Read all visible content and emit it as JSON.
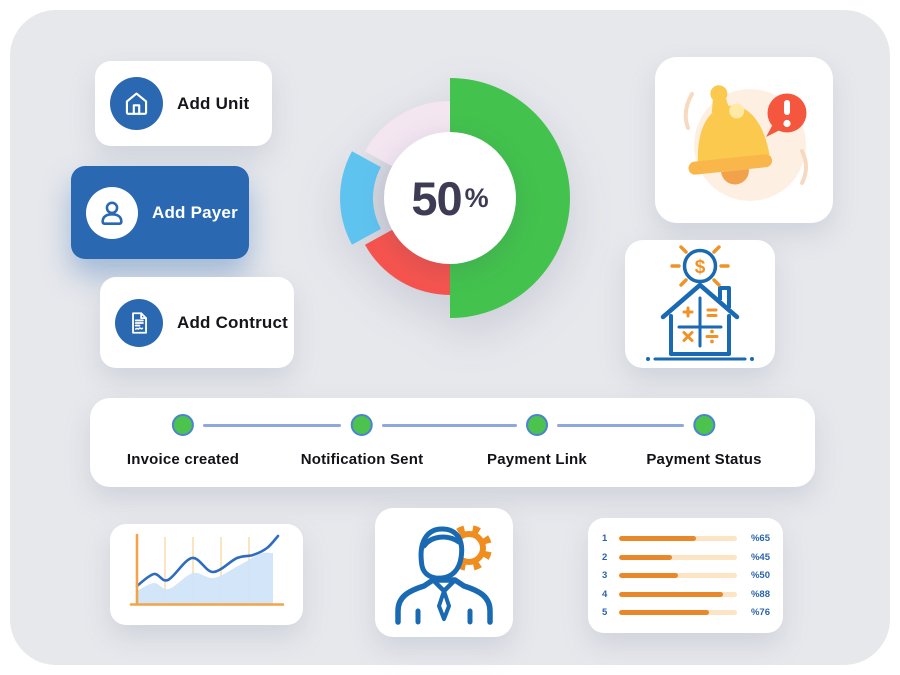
{
  "colors": {
    "canvas": "#e7e8ec",
    "card": "#ffffff",
    "primary_blue": "#2a68b2",
    "icon_blue": "#1a6ab3",
    "accent_orange": "#ef8d1f",
    "text_dark": "#15151c",
    "text_navy": "#3e3c55",
    "label_blue": "#2a64ad",
    "step_dot_green": "#4cc24f",
    "step_dot_border": "#4c82d0",
    "step_line": "#8fa7e0",
    "bar_fill": "#e8882a",
    "bar_track": "#fce4c4"
  },
  "actions": [
    {
      "label": "Add Unit",
      "icon": "home-icon",
      "active": false
    },
    {
      "label": "Add Payer",
      "icon": "user-icon",
      "active": true
    },
    {
      "label": "Add Contruct",
      "icon": "contract-icon",
      "active": false
    }
  ],
  "stepper": {
    "steps": [
      {
        "label": "Invoice created",
        "state": "complete"
      },
      {
        "label": "Notification Sent",
        "state": "complete"
      },
      {
        "label": "Payment Link",
        "state": "complete"
      },
      {
        "label": "Payment Status",
        "state": "complete"
      }
    ]
  },
  "illustrations": {
    "notification_bell": "bell-with-alert-bubble",
    "house_calculator": "house-with-dollar-magnifier-and-math-operators",
    "user_settings": "person-with-gear"
  },
  "chart_data": [
    {
      "type": "pie",
      "variant": "donut",
      "center_label": {
        "value": "50",
        "suffix": "%"
      },
      "start_angle": 0,
      "legend": "none",
      "slices": [
        {
          "name": "completed",
          "value": 50,
          "color": "#43c24d",
          "emphasis": true,
          "exploded": false
        },
        {
          "name": "segment-red",
          "value": 17,
          "color": "#f5544e",
          "emphasis": false,
          "exploded": false
        },
        {
          "name": "segment-sky",
          "value": 16,
          "color": "#5fc3f0",
          "emphasis": false,
          "exploded": true
        },
        {
          "name": "segment-lavender",
          "value": 17,
          "color": "#f3e6f1",
          "emphasis": false,
          "exploded": false
        }
      ]
    },
    {
      "type": "line",
      "title": "",
      "axes_visible": true,
      "grid": "vertical",
      "baseline_y": 80,
      "series": [
        {
          "name": "area-fill",
          "kind": "area",
          "color": "#cfe3f8",
          "points": [
            [
              27,
              67
            ],
            [
              44,
              59
            ],
            [
              59,
              65
            ],
            [
              83,
              49
            ],
            [
              104,
              54
            ],
            [
              128,
              42
            ],
            [
              150,
              30
            ],
            [
              163,
              29
            ]
          ]
        },
        {
          "name": "trend-line",
          "kind": "line",
          "color": "#2e6cc2",
          "points": [
            [
              27,
              62
            ],
            [
              44,
              50
            ],
            [
              58,
              56
            ],
            [
              82,
              34
            ],
            [
              103,
              48
            ],
            [
              127,
              34
            ],
            [
              143,
              31
            ],
            [
              157,
              24
            ],
            [
              168,
              12
            ]
          ]
        }
      ]
    },
    {
      "type": "bar",
      "orientation": "horizontal",
      "bar_color": "#e8882a",
      "track_color": "#fce4c4",
      "rows": [
        {
          "index": "1",
          "percent": 65,
          "label": "%65"
        },
        {
          "index": "2",
          "percent": 45,
          "label": "%45"
        },
        {
          "index": "3",
          "percent": 50,
          "label": "%50"
        },
        {
          "index": "4",
          "percent": 88,
          "label": "%88"
        },
        {
          "index": "5",
          "percent": 76,
          "label": "%76"
        }
      ]
    }
  ]
}
